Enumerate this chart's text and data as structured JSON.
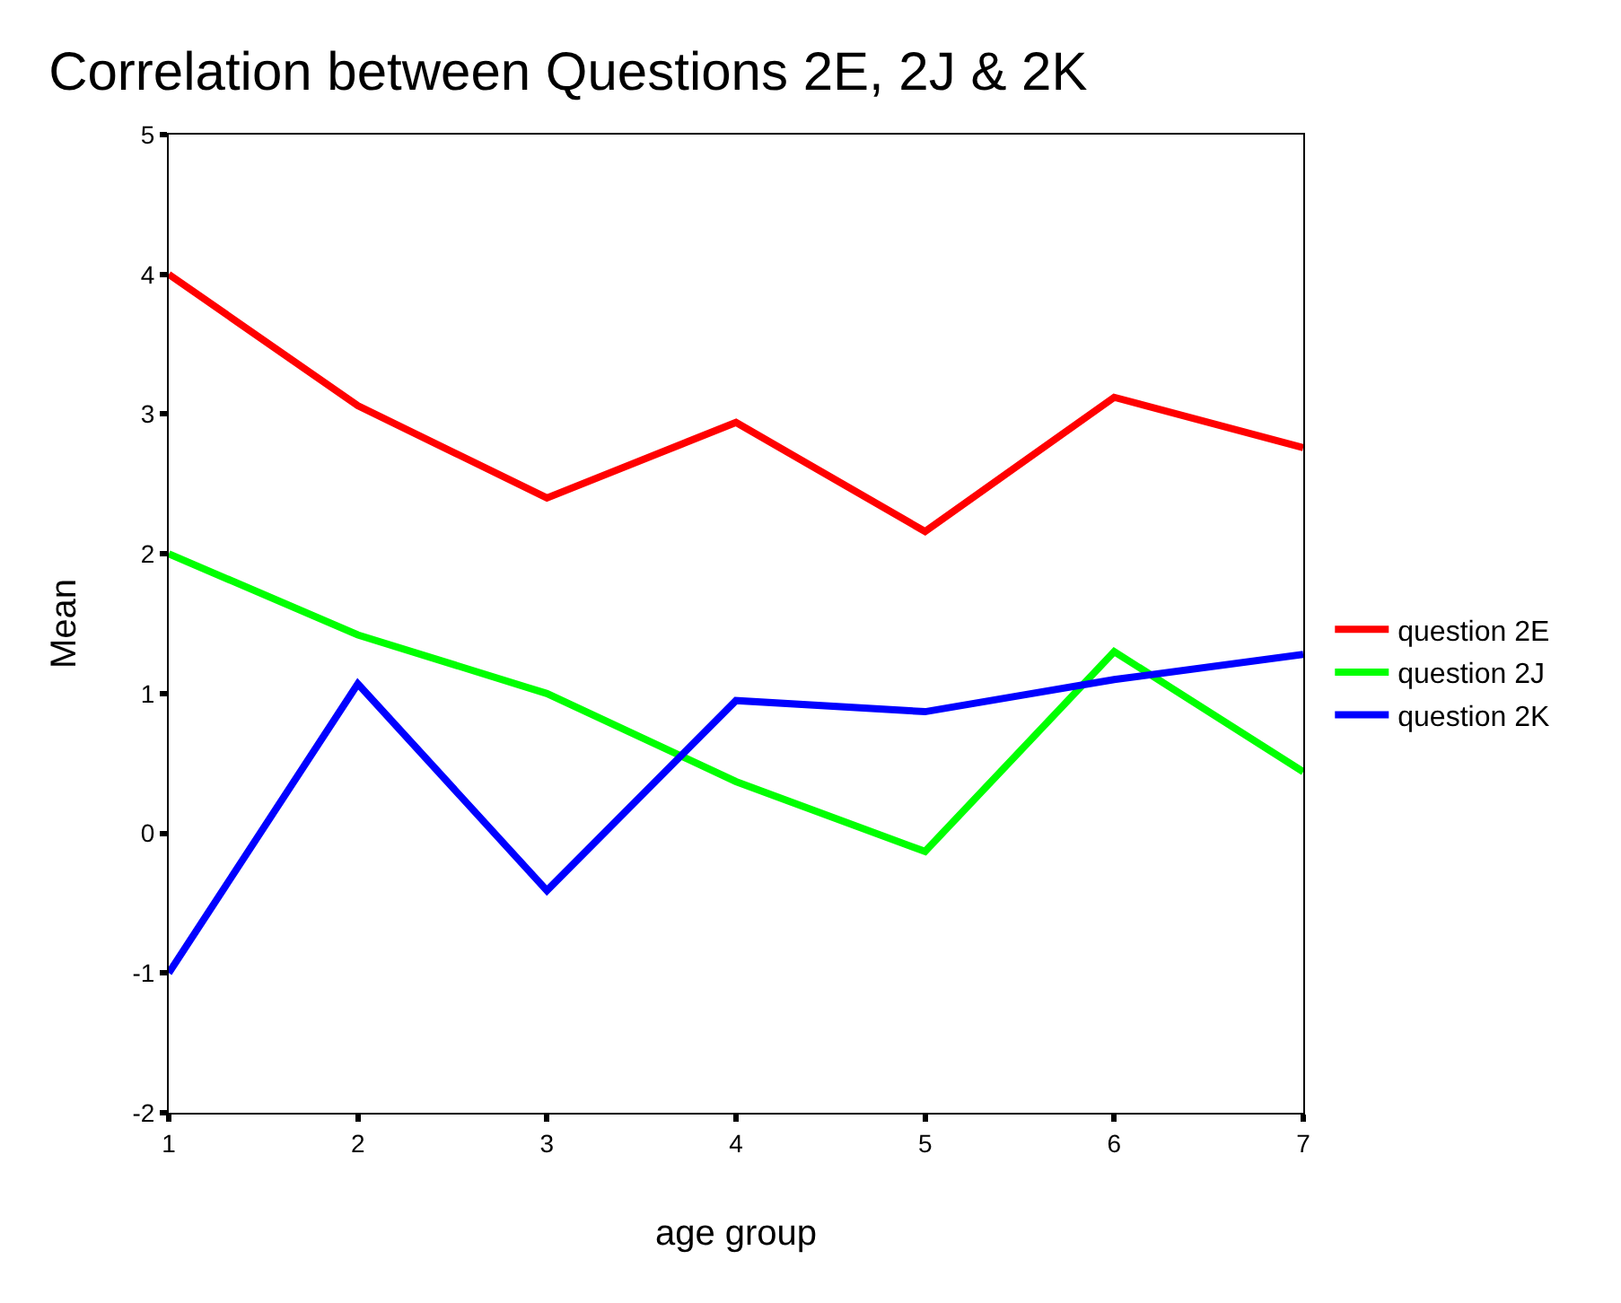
{
  "chart_data": {
    "type": "line",
    "title": "Correlation between Questions 2E, 2J & 2K",
    "xlabel": "age group",
    "ylabel": "Mean",
    "x": [
      1,
      2,
      3,
      4,
      5,
      6,
      7
    ],
    "series": [
      {
        "name": "question 2E",
        "color": "#ff0000",
        "values": [
          4.0,
          3.06,
          2.4,
          2.94,
          2.16,
          3.12,
          2.76
        ]
      },
      {
        "name": "question 2J",
        "color": "#00ff00",
        "values": [
          2.0,
          1.42,
          1.0,
          0.37,
          -0.13,
          1.3,
          0.44
        ]
      },
      {
        "name": "question 2K",
        "color": "#0000ff",
        "values": [
          -1.0,
          1.07,
          -0.41,
          0.95,
          0.87,
          1.1,
          1.28
        ]
      }
    ],
    "xlim": [
      1,
      7
    ],
    "xticks": [
      1,
      2,
      3,
      4,
      5,
      6,
      7
    ],
    "ylim": [
      -2,
      5
    ],
    "yticks": [
      -2,
      -1,
      0,
      1,
      2,
      3,
      4,
      5
    ],
    "legend": "right",
    "marker": "none",
    "line_style": "solid"
  }
}
